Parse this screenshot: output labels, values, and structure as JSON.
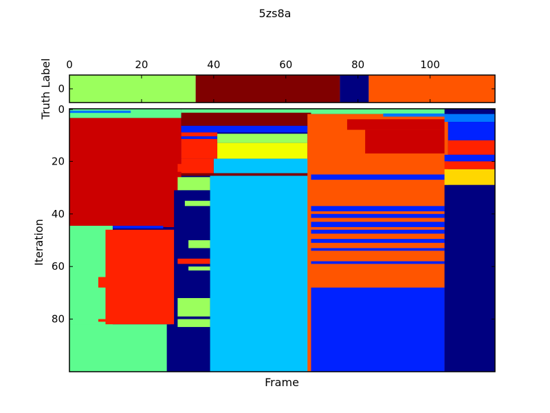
{
  "figure": {
    "title": "5zs8a"
  },
  "colors": {
    "green": "#5dfc8f",
    "red": "#cc0000",
    "orangered": "#ff2200",
    "darkred": "#800000",
    "orange": "#ff5500",
    "lime": "#9bff5d",
    "yellow": "#f2ff00",
    "gold": "#ffd700",
    "cyan": "#00c4ff",
    "navy": "#000080",
    "blue": "#0022ff",
    "azure": "#0077ff"
  },
  "chart_data": [
    {
      "type": "heatmap",
      "ylabel": "Truth Label",
      "x_top_ticks": [
        "0",
        "20",
        "40",
        "60",
        "80",
        "100"
      ],
      "x_top_tick_values": [
        0,
        20,
        40,
        60,
        80,
        100
      ],
      "y_ticks": [
        "0"
      ],
      "xlim": [
        0,
        118
      ],
      "segments": [
        {
          "start": 0,
          "end": 35,
          "color": "lime"
        },
        {
          "start": 35,
          "end": 75,
          "color": "darkred"
        },
        {
          "start": 75,
          "end": 83,
          "color": "navy"
        },
        {
          "start": 83,
          "end": 118,
          "color": "orange"
        }
      ]
    },
    {
      "type": "heatmap",
      "xlabel": "Frame",
      "ylabel": "Iteration",
      "y_ticks": [
        "0",
        "20",
        "40",
        "60",
        "80"
      ],
      "y_tick_values": [
        0,
        20,
        40,
        60,
        80
      ],
      "xlim": [
        0,
        118
      ],
      "ylim": [
        0,
        100
      ],
      "rects": [
        {
          "x0": 0,
          "x1": 31,
          "y0": 0,
          "y1": 4,
          "color": "green"
        },
        {
          "x0": 31,
          "x1": 67,
          "y0": 0,
          "y1": 2,
          "color": "green"
        },
        {
          "x0": 67,
          "x1": 104,
          "y0": 0,
          "y1": 2,
          "color": "green"
        },
        {
          "x0": 0,
          "x1": 17,
          "y0": 0.7,
          "y1": 1.6,
          "color": "azure"
        },
        {
          "x0": 0,
          "x1": 31,
          "y0": 3.5,
          "y1": 45,
          "color": "red"
        },
        {
          "x0": 27,
          "x1": 31,
          "y0": 20,
          "y1": 45,
          "color": "red"
        },
        {
          "x0": 30,
          "x1": 33,
          "y0": 21,
          "y1": 24,
          "color": "orangered"
        },
        {
          "x0": 0,
          "x1": 12,
          "y0": 44.5,
          "y1": 82.5,
          "color": "green"
        },
        {
          "x0": 12,
          "x1": 26,
          "y0": 44.5,
          "y1": 45.5,
          "color": "blue"
        },
        {
          "x0": 10,
          "x1": 32,
          "y0": 46,
          "y1": 82,
          "color": "orangered"
        },
        {
          "x0": 8,
          "x1": 11,
          "y0": 64,
          "y1": 68,
          "color": "orangered"
        },
        {
          "x0": 8,
          "x1": 11,
          "y0": 80,
          "y1": 81,
          "color": "orangered"
        },
        {
          "x0": 0,
          "x1": 28,
          "y0": 82,
          "y1": 100,
          "color": "green"
        },
        {
          "x0": 27,
          "x1": 31,
          "y0": 82,
          "y1": 100,
          "color": "navy"
        },
        {
          "x0": 31,
          "x1": 67,
          "y0": 1.5,
          "y1": 6.5,
          "color": "darkred"
        },
        {
          "x0": 31,
          "x1": 67,
          "y0": 6.5,
          "y1": 9,
          "color": "blue"
        },
        {
          "x0": 31,
          "x1": 41,
          "y0": 9,
          "y1": 10.5,
          "color": "orangered"
        },
        {
          "x0": 31,
          "x1": 67,
          "y0": 10.5,
          "y1": 11.5,
          "color": "blue"
        },
        {
          "x0": 31,
          "x1": 41,
          "y0": 11.5,
          "y1": 19,
          "color": "orangered"
        },
        {
          "x0": 41,
          "x1": 66,
          "y0": 9.5,
          "y1": 13,
          "color": "lime"
        },
        {
          "x0": 41,
          "x1": 66,
          "y0": 13,
          "y1": 19,
          "color": "yellow"
        },
        {
          "x0": 40,
          "x1": 67,
          "y0": 19,
          "y1": 25.5,
          "color": "cyan"
        },
        {
          "x0": 31,
          "x1": 40,
          "y0": 19,
          "y1": 25,
          "color": "orangered"
        },
        {
          "x0": 31,
          "x1": 67,
          "y0": 24.5,
          "y1": 25.5,
          "color": "darkred"
        },
        {
          "x0": 30,
          "x1": 39,
          "y0": 26,
          "y1": 31,
          "color": "lime"
        },
        {
          "x0": 29,
          "x1": 39,
          "y0": 31,
          "y1": 100,
          "color": "navy"
        },
        {
          "x0": 32,
          "x1": 39,
          "y0": 35,
          "y1": 37,
          "color": "lime"
        },
        {
          "x0": 33,
          "x1": 39,
          "y0": 50,
          "y1": 53,
          "color": "lime"
        },
        {
          "x0": 30,
          "x1": 39,
          "y0": 57,
          "y1": 59,
          "color": "orangered"
        },
        {
          "x0": 33,
          "x1": 39,
          "y0": 60,
          "y1": 61.5,
          "color": "lime"
        },
        {
          "x0": 30,
          "x1": 39,
          "y0": 72,
          "y1": 79,
          "color": "lime"
        },
        {
          "x0": 30,
          "x1": 39,
          "y0": 80,
          "y1": 83,
          "color": "lime"
        },
        {
          "x0": 39,
          "x1": 67,
          "y0": 25.5,
          "y1": 100,
          "color": "cyan"
        },
        {
          "x0": 66,
          "x1": 105,
          "y0": 2,
          "y1": 100,
          "color": "orange"
        },
        {
          "x0": 77,
          "x1": 104,
          "y0": 4,
          "y1": 8,
          "color": "red"
        },
        {
          "x0": 82,
          "x1": 104,
          "y0": 8,
          "y1": 17,
          "color": "red"
        },
        {
          "x0": 87,
          "x1": 104,
          "y0": 1.8,
          "y1": 3,
          "color": "azure"
        },
        {
          "x0": 67,
          "x1": 104,
          "y0": 25,
          "y1": 27,
          "color": "blue"
        },
        {
          "x0": 67,
          "x1": 104,
          "y0": 37,
          "y1": 39,
          "color": "blue"
        },
        {
          "x0": 67,
          "x1": 104,
          "y0": 40,
          "y1": 41.5,
          "color": "blue"
        },
        {
          "x0": 67,
          "x1": 104,
          "y0": 43,
          "y1": 45,
          "color": "blue"
        },
        {
          "x0": 67,
          "x1": 104,
          "y0": 46,
          "y1": 47.5,
          "color": "blue"
        },
        {
          "x0": 67,
          "x1": 104,
          "y0": 49.5,
          "y1": 51,
          "color": "blue"
        },
        {
          "x0": 67,
          "x1": 104,
          "y0": 53,
          "y1": 54,
          "color": "blue"
        },
        {
          "x0": 67,
          "x1": 104,
          "y0": 58,
          "y1": 59,
          "color": "blue"
        },
        {
          "x0": 67,
          "x1": 104,
          "y0": 68,
          "y1": 100,
          "color": "blue"
        },
        {
          "x0": 104,
          "x1": 118,
          "y0": 2,
          "y1": 5,
          "color": "azure"
        },
        {
          "x0": 105,
          "x1": 118,
          "y0": 5,
          "y1": 12,
          "color": "blue"
        },
        {
          "x0": 105,
          "x1": 118,
          "y0": 12,
          "y1": 17.5,
          "color": "orangered"
        },
        {
          "x0": 104,
          "x1": 118,
          "y0": 17.5,
          "y1": 20,
          "color": "blue"
        },
        {
          "x0": 104,
          "x1": 118,
          "y0": 20,
          "y1": 23,
          "color": "orangered"
        },
        {
          "x0": 104,
          "x1": 118,
          "y0": 23,
          "y1": 29,
          "color": "gold"
        },
        {
          "x0": 104,
          "x1": 118,
          "y0": 29,
          "y1": 100,
          "color": "navy"
        }
      ]
    }
  ]
}
